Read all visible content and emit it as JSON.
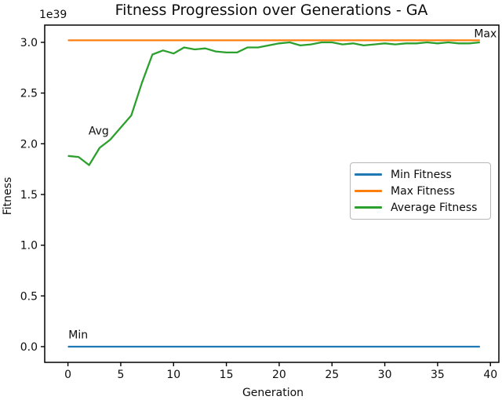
{
  "chart_data": {
    "type": "line",
    "title": "Fitness Progression over Generations - GA",
    "xlabel": "Generation",
    "ylabel": "Fitness",
    "y_offset_label": "1e39",
    "grid": false,
    "xlim": [
      -2.2,
      40.8
    ],
    "ylim": [
      -0.155,
      3.17
    ],
    "xticks": [
      0,
      5,
      10,
      15,
      20,
      25,
      30,
      35,
      40
    ],
    "yticks": [
      0.0,
      0.5,
      1.0,
      1.5,
      2.0,
      2.5,
      3.0
    ],
    "ytick_labels": [
      "0.0",
      "0.5",
      "1.0",
      "1.5",
      "2.0",
      "2.5",
      "3.0"
    ],
    "legend": {
      "position": "center right"
    },
    "x": [
      0,
      1,
      2,
      3,
      4,
      5,
      6,
      7,
      8,
      9,
      10,
      11,
      12,
      13,
      14,
      15,
      16,
      17,
      18,
      19,
      20,
      21,
      22,
      23,
      24,
      25,
      26,
      27,
      28,
      29,
      30,
      31,
      32,
      33,
      34,
      35,
      36,
      37,
      38,
      39
    ],
    "series": [
      {
        "name": "Min Fitness",
        "color": "#1f77b4",
        "values": [
          0,
          0,
          0,
          0,
          0,
          0,
          0,
          0,
          0,
          0,
          0,
          0,
          0,
          0,
          0,
          0,
          0,
          0,
          0,
          0,
          0,
          0,
          0,
          0,
          0,
          0,
          0,
          0,
          0,
          0,
          0,
          0,
          0,
          0,
          0,
          0,
          0,
          0,
          0,
          0
        ]
      },
      {
        "name": "Max Fitness",
        "color": "#ff7f0e",
        "values": [
          3.02,
          3.02,
          3.02,
          3.02,
          3.02,
          3.02,
          3.02,
          3.02,
          3.02,
          3.02,
          3.02,
          3.02,
          3.02,
          3.02,
          3.02,
          3.02,
          3.02,
          3.02,
          3.02,
          3.02,
          3.02,
          3.02,
          3.02,
          3.02,
          3.02,
          3.02,
          3.02,
          3.02,
          3.02,
          3.02,
          3.02,
          3.02,
          3.02,
          3.02,
          3.02,
          3.02,
          3.02,
          3.02,
          3.02,
          3.02
        ]
      },
      {
        "name": "Average Fitness",
        "color": "#2ca02c",
        "values": [
          1.88,
          1.87,
          1.79,
          1.96,
          2.04,
          2.16,
          2.28,
          2.6,
          2.88,
          2.92,
          2.89,
          2.95,
          2.93,
          2.94,
          2.91,
          2.9,
          2.9,
          2.95,
          2.95,
          2.97,
          2.99,
          3.0,
          2.97,
          2.98,
          3.0,
          3.0,
          2.98,
          2.99,
          2.97,
          2.98,
          2.99,
          2.98,
          2.99,
          2.99,
          3.0,
          2.99,
          3.0,
          2.99,
          2.99,
          3.0
        ]
      }
    ],
    "annotations": [
      {
        "text": "Max",
        "x": 40.6,
        "y": 3.05,
        "anchor": "end"
      },
      {
        "text": "Avg",
        "x": 1.95,
        "y": 2.09,
        "anchor": "start"
      },
      {
        "text": "Min",
        "x": 0.05,
        "y": 0.08,
        "anchor": "start"
      }
    ]
  }
}
